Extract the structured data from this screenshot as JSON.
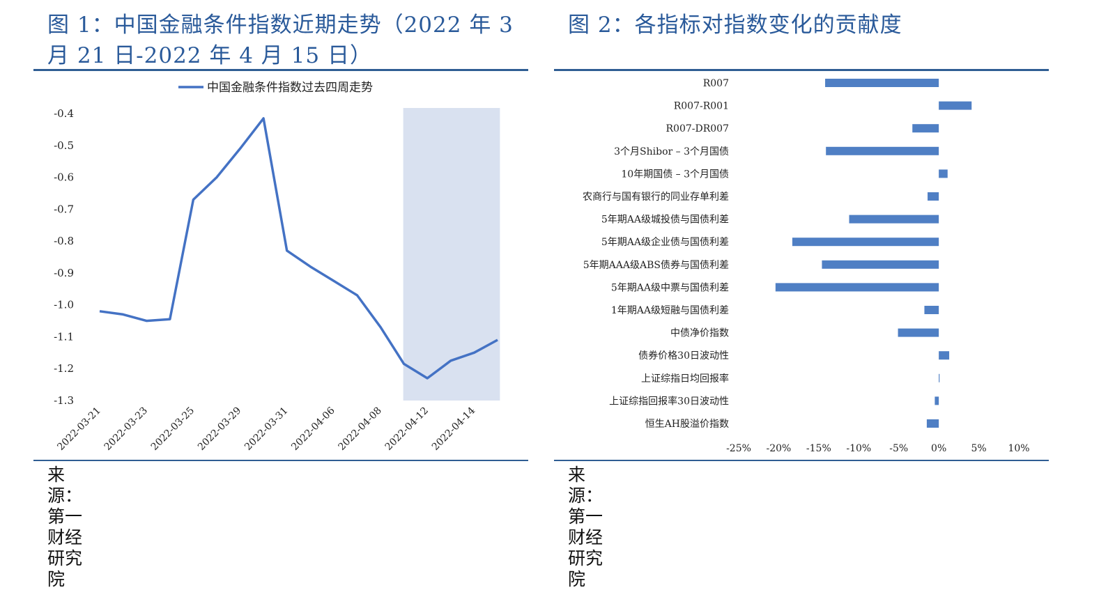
{
  "left": {
    "title_line1": "图 1：中国金融条件指数近期走势（2022 年 3",
    "title_line2": "月 21 日-2022 年 4 月 15 日）",
    "source": "来源：第一财经研究院"
  },
  "right": {
    "title": "图 2：各指标对指数变化的贡献度",
    "source": "来源：第一财经研究院"
  },
  "colors": {
    "accent": "#2f5d93",
    "series": "#4472c4",
    "bar": "#4f7fc4",
    "highlight": "#d9e1f0"
  },
  "chart_data": [
    {
      "type": "line",
      "legend_position": "top",
      "series": [
        {
          "name": "中国金融条件指数过去四周走势",
          "x": [
            "2022-03-21",
            "2022-03-22",
            "2022-03-23",
            "2022-03-24",
            "2022-03-25",
            "2022-03-28",
            "2022-03-29",
            "2022-03-30",
            "2022-03-31",
            "2022-04-01",
            "2022-04-06",
            "2022-04-07",
            "2022-04-08",
            "2022-04-11",
            "2022-04-12",
            "2022-04-13",
            "2022-04-14",
            "2022-04-15"
          ],
          "values": [
            -1.02,
            -1.03,
            -1.05,
            -1.045,
            -0.67,
            -0.6,
            -0.51,
            -0.415,
            -0.83,
            -0.88,
            -0.925,
            -0.97,
            -1.07,
            -1.185,
            -1.23,
            -1.175,
            -1.15,
            -1.11
          ]
        }
      ],
      "x_tick_labels": [
        "2022-03-21",
        "2022-03-23",
        "2022-03-25",
        "2022-03-29",
        "2022-03-31",
        "2022-04-06",
        "2022-04-08",
        "2022-04-12",
        "2022-04-14"
      ],
      "y_tick_labels": [
        "-0.4",
        "-0.5",
        "-0.6",
        "-0.7",
        "-0.8",
        "-0.9",
        "-1.0",
        "-1.1",
        "-1.2",
        "-1.3"
      ],
      "ylim": [
        -1.3,
        -0.4
      ],
      "shaded_region": [
        "2022-04-11",
        "2022-04-15"
      ],
      "grid": false
    },
    {
      "type": "bar",
      "orientation": "horizontal",
      "categories": [
        "R007",
        "R007-R001",
        "R007-DR007",
        "3个月Shibor – 3个月国债",
        "10年期国债 – 3个月国债",
        "农商行与国有银行的同业存单利差",
        "5年期AA级城投债与国债利差",
        "5年期AA级企业债与国债利差",
        "5年期AAA级ABS债券与国债利差",
        "5年期AA级中票与国债利差",
        "1年期AA级短融与国债利差",
        "中债净价指数",
        "债券价格30日波动性",
        "上证综指日均回报率",
        "上证综指回报率30日波动性",
        "恒生AH股溢价指数"
      ],
      "values": [
        -14.2,
        4.1,
        -3.3,
        -14.1,
        1.1,
        -1.4,
        -11.2,
        -18.3,
        -14.6,
        -20.4,
        -1.8,
        -5.1,
        1.3,
        0.1,
        -0.5,
        -1.5
      ],
      "x_tick_labels": [
        "-25%",
        "-20%",
        "-15%",
        "-10%",
        "-5%",
        "0%",
        "5%",
        "10%"
      ],
      "xlim": [
        -25,
        10
      ],
      "unit": "%",
      "grid": false
    }
  ]
}
